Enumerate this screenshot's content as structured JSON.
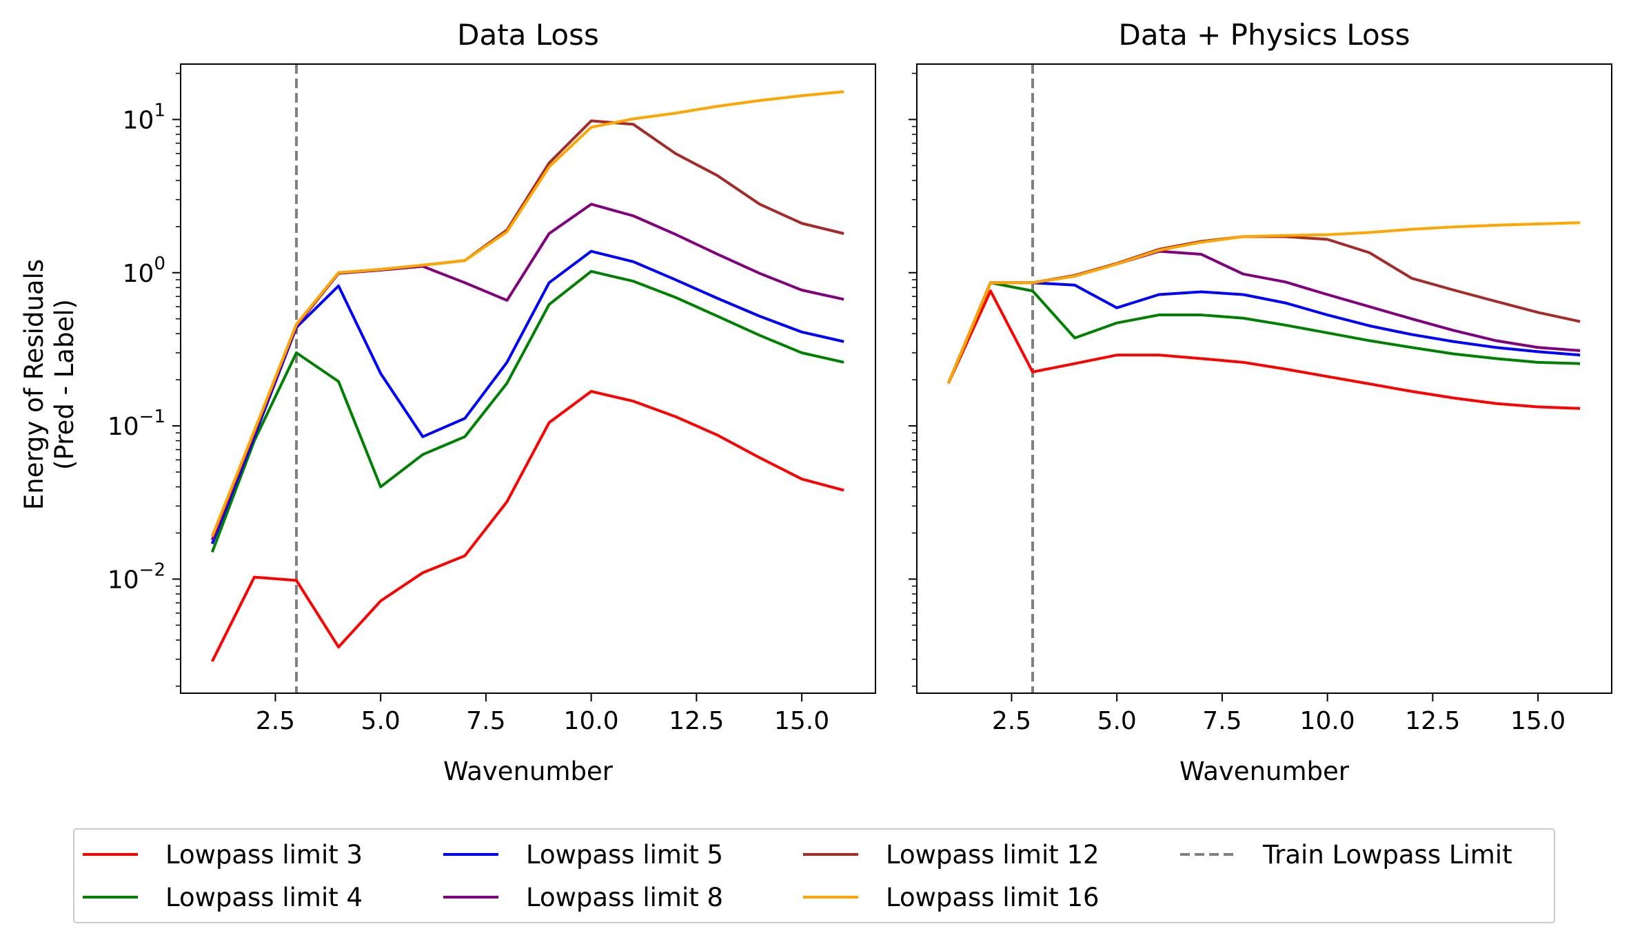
{
  "figure": {
    "ylabel_line1": "Energy of Residuals",
    "ylabel_line2": "(Pred - Label)"
  },
  "legend": {
    "entries": [
      {
        "label": "Lowpass limit 3",
        "color": "#ff0000",
        "style": "solid"
      },
      {
        "label": "Lowpass limit 4",
        "color": "#008000",
        "style": "solid"
      },
      {
        "label": "Lowpass limit 5",
        "color": "#0000ff",
        "style": "solid"
      },
      {
        "label": "Lowpass limit 8",
        "color": "#800080",
        "style": "solid"
      },
      {
        "label": "Lowpass limit 12",
        "color": "#a52a2a",
        "style": "solid"
      },
      {
        "label": "Lowpass limit 16",
        "color": "#ffa500",
        "style": "solid"
      },
      {
        "label": "Train Lowpass Limit",
        "color": "#808080",
        "style": "dashed"
      }
    ],
    "columns": 4,
    "placement": "bottom-center"
  },
  "chart_data": [
    {
      "type": "line",
      "title": "Data Loss",
      "xlabel": "Wavenumber",
      "ylabel": "Energy of Residuals\n(Pred - Label)",
      "yscale": "log",
      "xlim": [
        0.25,
        16.75
      ],
      "ylim": [
        0.0018,
        23
      ],
      "xticks": [
        2.5,
        5.0,
        7.5,
        10.0,
        12.5,
        15.0
      ],
      "xtick_labels": [
        "2.5",
        "5.0",
        "7.5",
        "10.0",
        "12.5",
        "15.0"
      ],
      "yticks": [
        0.01,
        0.1,
        1,
        10
      ],
      "ytick_labels": [
        "10",
        "10",
        "10",
        "10"
      ],
      "ytick_exponents": [
        "−2",
        "−1",
        "0",
        "1"
      ],
      "vline": {
        "x": 3,
        "label": "Train Lowpass Limit",
        "color": "#808080",
        "style": "dashed"
      },
      "x": [
        1,
        2,
        3,
        4,
        5,
        6,
        7,
        8,
        9,
        10,
        11,
        12,
        13,
        14,
        15,
        16
      ],
      "series": [
        {
          "name": "Lowpass limit 3",
          "color": "#ff0000",
          "values": [
            0.0029,
            0.0103,
            0.0098,
            0.0036,
            0.0072,
            0.011,
            0.0142,
            0.032,
            0.105,
            0.168,
            0.145,
            0.115,
            0.087,
            0.062,
            0.045,
            0.038
          ]
        },
        {
          "name": "Lowpass limit 4",
          "color": "#008000",
          "values": [
            0.015,
            0.08,
            0.3,
            0.195,
            0.04,
            0.065,
            0.085,
            0.19,
            0.62,
            1.02,
            0.88,
            0.69,
            0.52,
            0.39,
            0.3,
            0.26
          ]
        },
        {
          "name": "Lowpass limit 5",
          "color": "#0000ff",
          "values": [
            0.017,
            0.085,
            0.44,
            0.82,
            0.22,
            0.085,
            0.112,
            0.26,
            0.86,
            1.38,
            1.18,
            0.9,
            0.68,
            0.52,
            0.41,
            0.355
          ]
        },
        {
          "name": "Lowpass limit 8",
          "color": "#800080",
          "values": [
            0.018,
            0.09,
            0.45,
            0.99,
            1.04,
            1.1,
            0.86,
            0.66,
            1.8,
            2.8,
            2.35,
            1.78,
            1.32,
            0.99,
            0.77,
            0.67
          ]
        },
        {
          "name": "Lowpass limit 12",
          "color": "#a52a2a",
          "values": [
            0.019,
            0.092,
            0.46,
            1.0,
            1.05,
            1.12,
            1.2,
            1.9,
            5.2,
            9.8,
            9.3,
            6.0,
            4.3,
            2.8,
            2.1,
            1.8
          ]
        },
        {
          "name": "Lowpass limit 16",
          "color": "#ffa500",
          "values": [
            0.019,
            0.093,
            0.46,
            1.0,
            1.05,
            1.12,
            1.2,
            1.85,
            4.9,
            8.9,
            10.1,
            11.0,
            12.2,
            13.3,
            14.3,
            15.2
          ]
        }
      ]
    },
    {
      "type": "line",
      "title": "Data + Physics Loss",
      "xlabel": "Wavenumber",
      "ylabel": "",
      "yscale": "log",
      "xlim": [
        0.25,
        16.75
      ],
      "ylim": [
        0.0018,
        23
      ],
      "xticks": [
        2.5,
        5.0,
        7.5,
        10.0,
        12.5,
        15.0
      ],
      "xtick_labels": [
        "2.5",
        "5.0",
        "7.5",
        "10.0",
        "12.5",
        "15.0"
      ],
      "yticks": [
        0.01,
        0.1,
        1,
        10
      ],
      "ytick_labels": [],
      "vline": {
        "x": 3,
        "label": "Train Lowpass Limit",
        "color": "#808080",
        "style": "dashed"
      },
      "x": [
        1,
        2,
        3,
        4,
        5,
        6,
        7,
        8,
        9,
        10,
        11,
        12,
        13,
        14,
        15,
        16
      ],
      "series": [
        {
          "name": "Lowpass limit 3",
          "color": "#ff0000",
          "values": [
            0.19,
            0.76,
            0.225,
            0.255,
            0.29,
            0.29,
            0.275,
            0.26,
            0.235,
            0.21,
            0.188,
            0.168,
            0.152,
            0.14,
            0.133,
            0.13
          ]
        },
        {
          "name": "Lowpass limit 4",
          "color": "#008000",
          "values": [
            0.19,
            0.86,
            0.76,
            0.375,
            0.47,
            0.53,
            0.53,
            0.505,
            0.455,
            0.405,
            0.36,
            0.325,
            0.295,
            0.275,
            0.26,
            0.255
          ]
        },
        {
          "name": "Lowpass limit 5",
          "color": "#0000ff",
          "values": [
            0.19,
            0.86,
            0.86,
            0.83,
            0.59,
            0.72,
            0.75,
            0.72,
            0.635,
            0.53,
            0.45,
            0.395,
            0.355,
            0.325,
            0.305,
            0.29
          ]
        },
        {
          "name": "Lowpass limit 8",
          "color": "#800080",
          "values": [
            0.19,
            0.86,
            0.86,
            0.95,
            1.14,
            1.38,
            1.32,
            0.98,
            0.87,
            0.72,
            0.6,
            0.5,
            0.42,
            0.36,
            0.325,
            0.31
          ]
        },
        {
          "name": "Lowpass limit 12",
          "color": "#a52a2a",
          "values": [
            0.19,
            0.86,
            0.86,
            0.96,
            1.15,
            1.42,
            1.6,
            1.72,
            1.72,
            1.65,
            1.35,
            0.92,
            0.77,
            0.65,
            0.55,
            0.48
          ]
        },
        {
          "name": "Lowpass limit 16",
          "color": "#ffa500",
          "values": [
            0.19,
            0.86,
            0.86,
            0.95,
            1.14,
            1.4,
            1.58,
            1.72,
            1.75,
            1.77,
            1.83,
            1.92,
            1.99,
            2.04,
            2.08,
            2.12
          ]
        }
      ]
    }
  ]
}
